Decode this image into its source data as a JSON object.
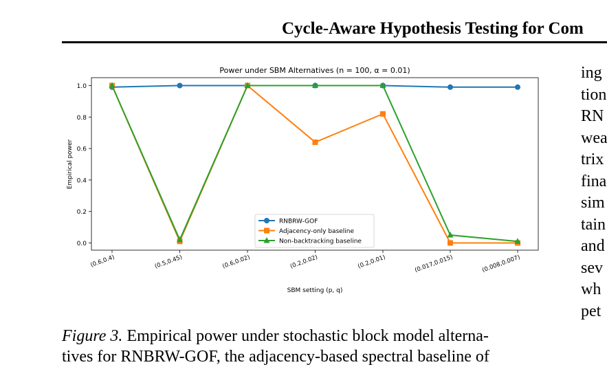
{
  "paper": {
    "running_head": "Cycle-Aware Hypothesis Testing for Com",
    "caption_label": "Figure 3.",
    "caption_line1": " Empirical power under stochastic block model alterna-",
    "caption_line2": "tives for RNBRW-GOF, the adjacency-based spectral baseline of",
    "side_column": [
      "ing",
      "tion",
      "RN",
      "wea",
      "trix",
      "fina",
      "sim",
      "tain",
      "and",
      "sev",
      "wh",
      "pet"
    ]
  },
  "chart_data": {
    "type": "line",
    "title": "Power under SBM Alternatives (n = 100, α = 0.01)",
    "xlabel": "SBM setting (p, q)",
    "ylabel": "Empirical power",
    "categories": [
      "(0.6,0.4)",
      "(0.5,0.45)",
      "(0.6,0.02)",
      "(0.2,0.02)",
      "(0.2,0.01)",
      "(0.017,0.015)",
      "(0.008,0.007)"
    ],
    "ylim": [
      -0.05,
      1.05
    ],
    "yticks": [
      "0.0",
      "0.2",
      "0.4",
      "0.6",
      "0.8",
      "1.0"
    ],
    "grid": false,
    "legend_position": "lower-center",
    "series": [
      {
        "name": "RNBRW-GOF",
        "color": "#1f77b4",
        "marker": "circle",
        "values": [
          0.99,
          1.0,
          1.0,
          1.0,
          1.0,
          0.99,
          0.99
        ]
      },
      {
        "name": "Adjacency-only baseline",
        "color": "#ff7f0e",
        "marker": "square",
        "values": [
          1.0,
          0.01,
          1.0,
          0.64,
          0.82,
          0.0,
          0.0
        ]
      },
      {
        "name": "Non-backtracking baseline",
        "color": "#2ca02c",
        "marker": "triangle",
        "values": [
          1.0,
          0.02,
          1.0,
          1.0,
          1.0,
          0.05,
          0.01
        ]
      }
    ]
  }
}
